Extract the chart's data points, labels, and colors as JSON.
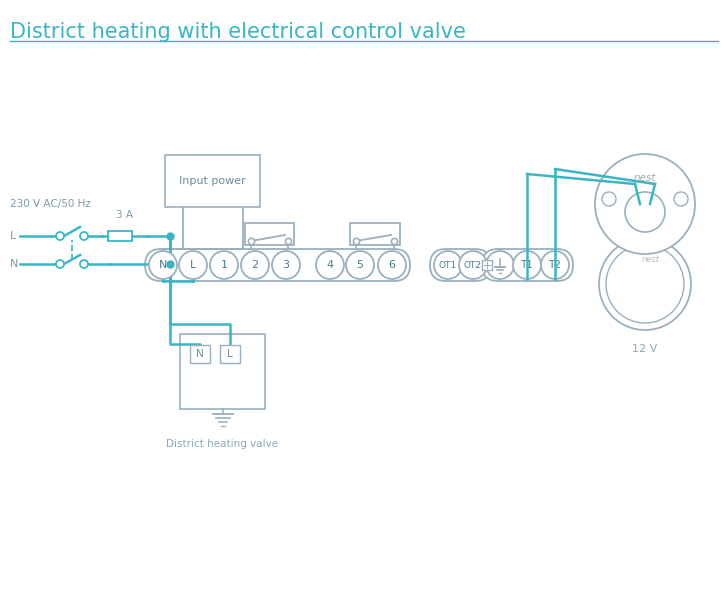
{
  "title": "District heating with electrical control valve",
  "title_color": "#3ab5c6",
  "title_fontsize": 15,
  "bg_color": "#ffffff",
  "wire_color": "#3ab5c6",
  "component_color": "#9ab0be",
  "label_230v": "230 V AC/50 Hz",
  "label_L": "L",
  "label_N": "N",
  "label_3A": "3 A",
  "label_input_power": "Input power",
  "label_district_valve": "District heating valve",
  "label_12v": "12 V",
  "label_nest_top": "nest",
  "label_nest_bottom": "nest"
}
